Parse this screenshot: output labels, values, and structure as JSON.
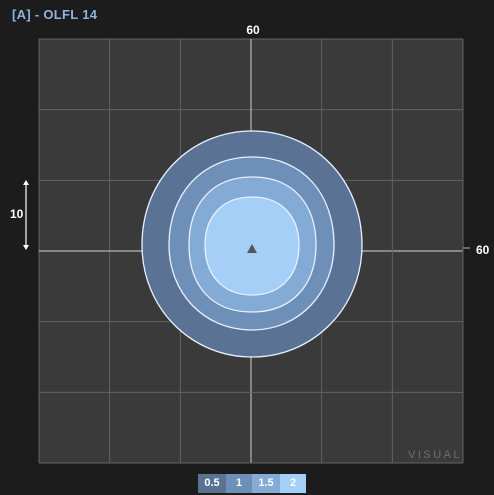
{
  "title": "[A] - OLFL 14",
  "axis": {
    "top_label": "60",
    "right_label": "60",
    "scale_label": "10"
  },
  "watermark": "VISUAL",
  "colors": {
    "background": "#1c1c1c",
    "plot_area": "#3a3a3a",
    "grid": "#646464",
    "axis": "#b5b5b5",
    "contour_stroke": "#e8f0ff",
    "title": "#8fb3df"
  },
  "contours": [
    {
      "level": "0.5",
      "color": "#5a7394"
    },
    {
      "level": "1",
      "color": "#6d8fb8"
    },
    {
      "level": "1.5",
      "color": "#84aad6"
    },
    {
      "level": "2",
      "color": "#a6cff7"
    }
  ],
  "legend": {
    "items": [
      {
        "label": "0.5",
        "color": "#5a7394"
      },
      {
        "label": "1",
        "color": "#6d8fb8"
      },
      {
        "label": "1.5",
        "color": "#84aad6"
      },
      {
        "label": "2",
        "color": "#a6cff7"
      }
    ]
  },
  "center_marker": "triangle"
}
